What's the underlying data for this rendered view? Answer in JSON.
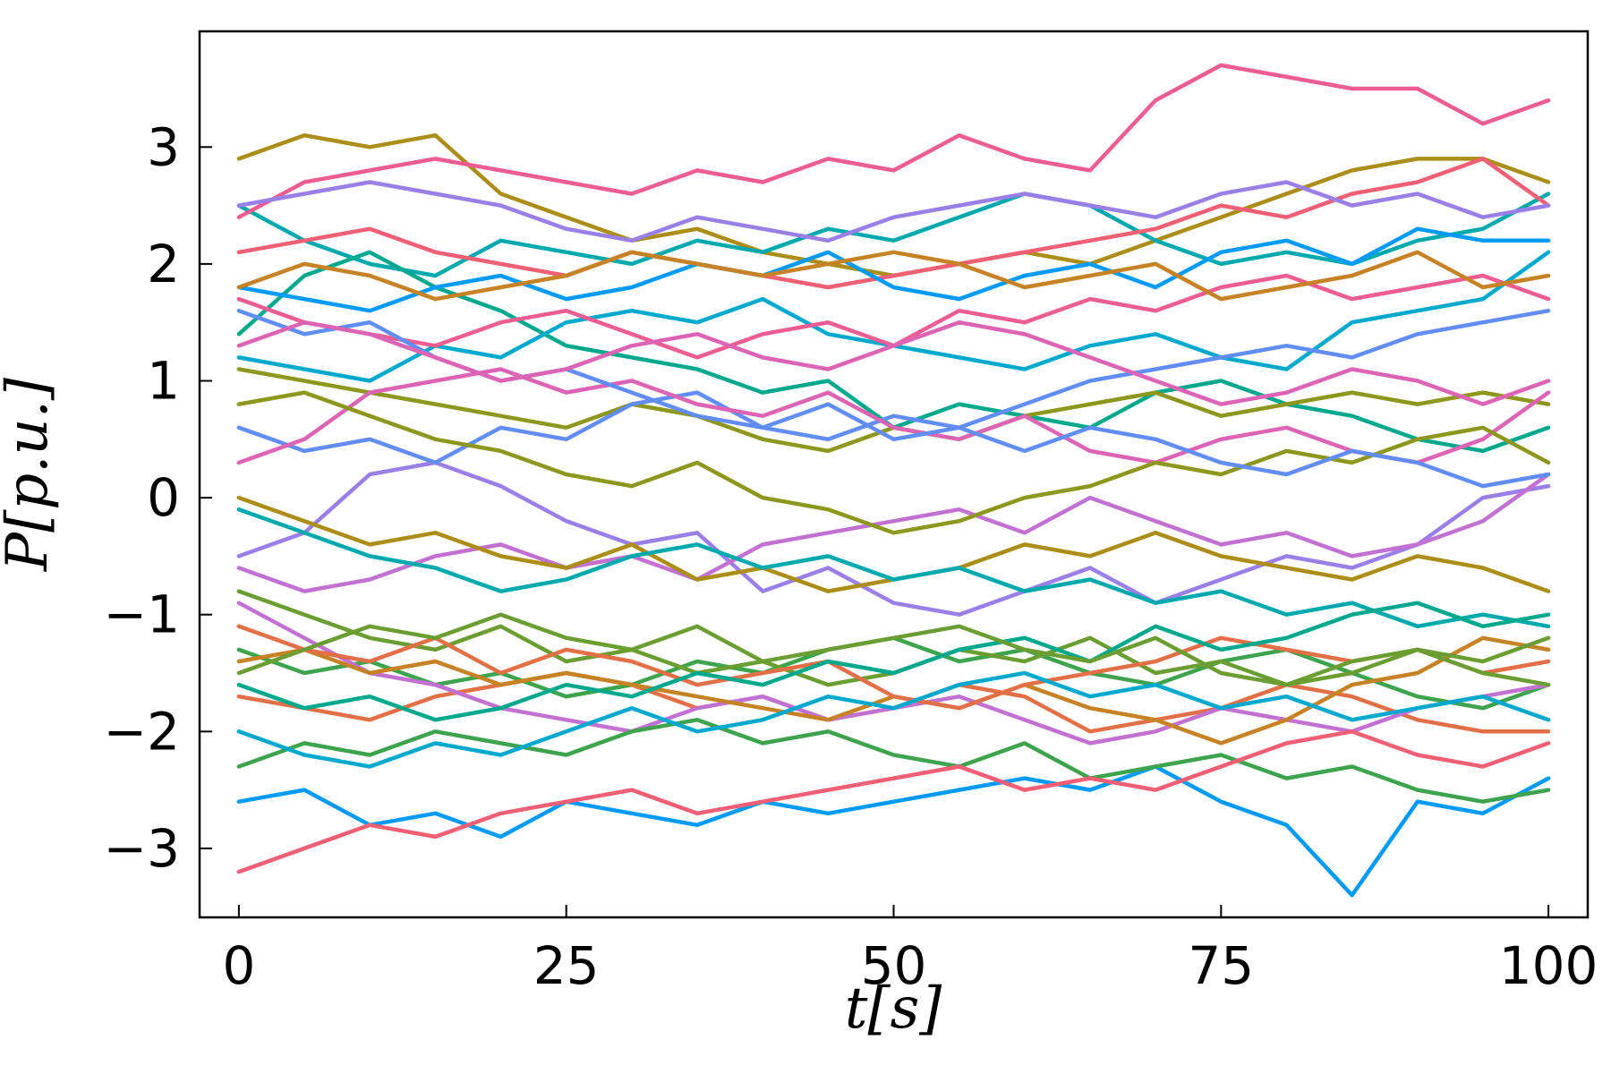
{
  "chart_data": {
    "type": "line",
    "x_label": "t[s]",
    "y_label": "P[p.u.]",
    "x": [
      0,
      5,
      10,
      15,
      20,
      25,
      30,
      35,
      40,
      45,
      50,
      55,
      60,
      65,
      70,
      75,
      80,
      85,
      90,
      95,
      100
    ],
    "xlim": [
      -3,
      103
    ],
    "xticks": [
      0,
      25,
      50,
      75,
      100
    ],
    "ylim": [
      -3.59,
      3.99
    ],
    "yticks": [
      {
        "value": -3,
        "label": "−3"
      },
      {
        "value": -2,
        "label": "−2"
      },
      {
        "value": -1,
        "label": "−1"
      },
      0,
      1,
      2,
      3
    ],
    "grid": false,
    "series": [
      {
        "color": "#009af9",
        "values": [
          -2.6,
          -2.5,
          -2.8,
          -2.7,
          -2.9,
          -2.6,
          -2.7,
          -2.8,
          -2.6,
          -2.7,
          -2.6,
          -2.5,
          -2.4,
          -2.5,
          -2.3,
          -2.6,
          -2.8,
          -3.4,
          -2.6,
          -2.7,
          -2.4
        ]
      },
      {
        "color": "#e26f46",
        "values": [
          -1.7,
          -1.8,
          -1.9,
          -1.7,
          -1.6,
          -1.5,
          -1.6,
          -1.8,
          -1.7,
          -1.9,
          -1.8,
          -1.6,
          -1.7,
          -2.0,
          -1.9,
          -1.8,
          -1.6,
          -1.7,
          -1.9,
          -2.0,
          -2.0
        ]
      },
      {
        "color": "#3da44d",
        "values": [
          -1.3,
          -1.5,
          -1.4,
          -1.6,
          -1.5,
          -1.7,
          -1.6,
          -1.4,
          -1.5,
          -1.3,
          -1.2,
          -1.4,
          -1.3,
          -1.5,
          -1.6,
          -1.4,
          -1.3,
          -1.5,
          -1.7,
          -1.8,
          -1.6
        ]
      },
      {
        "color": "#c271d2",
        "values": [
          -0.9,
          -1.2,
          -1.5,
          -1.6,
          -1.8,
          -1.9,
          -2.0,
          -1.8,
          -1.7,
          -1.9,
          -1.8,
          -1.7,
          -1.9,
          -2.1,
          -2.0,
          -1.8,
          -1.9,
          -2.0,
          -1.8,
          -1.7,
          -1.6
        ]
      },
      {
        "color": "#ac8d18",
        "values": [
          2.9,
          3.1,
          3.0,
          3.1,
          2.6,
          2.4,
          2.2,
          2.3,
          2.1,
          2.0,
          1.9,
          2.0,
          2.1,
          2.0,
          2.2,
          2.4,
          2.6,
          2.8,
          2.9,
          2.9,
          2.7
        ]
      },
      {
        "color": "#00a9ad",
        "values": [
          2.5,
          2.2,
          2.0,
          1.9,
          2.2,
          2.1,
          2.0,
          2.2,
          2.1,
          2.3,
          2.2,
          2.4,
          2.6,
          2.5,
          2.2,
          2.0,
          2.1,
          2.0,
          2.2,
          2.3,
          2.6
        ]
      },
      {
        "color": "#ed5d92",
        "values": [
          2.4,
          2.7,
          2.8,
          2.9,
          2.8,
          2.7,
          2.6,
          2.8,
          2.7,
          2.9,
          2.8,
          3.1,
          2.9,
          2.8,
          3.4,
          3.7,
          3.6,
          3.5,
          3.5,
          3.2,
          3.4
        ]
      },
      {
        "color": "#c68225",
        "values": [
          -1.4,
          -1.3,
          -1.5,
          -1.4,
          -1.6,
          -1.5,
          -1.6,
          -1.7,
          -1.8,
          -1.9,
          -1.7,
          -1.8,
          -1.6,
          -1.8,
          -1.9,
          -2.1,
          -1.9,
          -1.6,
          -1.5,
          -1.2,
          -1.3
        ]
      },
      {
        "color": "#00a98d",
        "values": [
          1.4,
          1.9,
          2.1,
          1.8,
          1.6,
          1.3,
          1.2,
          1.1,
          0.9,
          1.0,
          0.6,
          0.8,
          0.7,
          0.6,
          0.9,
          1.0,
          0.8,
          0.7,
          0.5,
          0.4,
          0.6
        ]
      },
      {
        "color": "#8e971d",
        "values": [
          1.1,
          1.0,
          0.9,
          0.8,
          0.7,
          0.6,
          0.8,
          0.7,
          0.5,
          0.4,
          0.6,
          0.5,
          0.7,
          0.8,
          0.9,
          0.7,
          0.8,
          0.9,
          0.8,
          0.9,
          0.8
        ]
      },
      {
        "color": "#00a9cd",
        "values": [
          1.2,
          1.1,
          1.0,
          1.3,
          1.2,
          1.5,
          1.6,
          1.5,
          1.7,
          1.4,
          1.3,
          1.2,
          1.1,
          1.3,
          1.4,
          1.2,
          1.1,
          1.5,
          1.6,
          1.7,
          2.1
        ]
      },
      {
        "color": "#9b7fe8",
        "values": [
          -0.5,
          -0.3,
          0.2,
          0.3,
          0.1,
          -0.2,
          -0.4,
          -0.3,
          -0.8,
          -0.6,
          -0.9,
          -1.0,
          -0.8,
          -0.6,
          -0.9,
          -0.7,
          -0.5,
          -0.6,
          -0.4,
          0.0,
          0.1
        ]
      },
      {
        "color": "#618df6",
        "values": [
          0.6,
          0.4,
          0.5,
          0.3,
          0.6,
          0.5,
          0.8,
          0.9,
          0.6,
          0.5,
          0.7,
          0.6,
          0.8,
          1.0,
          1.1,
          1.2,
          1.3,
          1.2,
          1.4,
          1.5,
          1.6
        ]
      },
      {
        "color": "#f05f73",
        "values": [
          2.1,
          2.2,
          2.3,
          2.1,
          2.0,
          1.9,
          2.1,
          2.0,
          1.9,
          1.8,
          1.9,
          2.0,
          2.1,
          2.2,
          2.3,
          2.5,
          2.4,
          2.6,
          2.7,
          2.9,
          2.5
        ]
      },
      {
        "color": "#dd64b5",
        "values": [
          0.3,
          0.5,
          0.9,
          1.0,
          1.1,
          0.9,
          1.0,
          0.8,
          0.7,
          0.9,
          0.6,
          0.5,
          0.7,
          0.4,
          0.3,
          0.5,
          0.6,
          0.4,
          0.3,
          0.5,
          0.9
        ]
      },
      {
        "color": "#6b9e32",
        "values": [
          -0.8,
          -1.0,
          -1.2,
          -1.3,
          -1.1,
          -1.4,
          -1.3,
          -1.5,
          -1.4,
          -1.6,
          -1.5,
          -1.3,
          -1.4,
          -1.2,
          -1.5,
          -1.4,
          -1.6,
          -1.5,
          -1.3,
          -1.4,
          -1.2
        ]
      },
      {
        "color": "#009af9",
        "values": [
          1.8,
          1.7,
          1.6,
          1.8,
          1.9,
          1.7,
          1.8,
          2.0,
          1.9,
          2.1,
          1.8,
          1.7,
          1.9,
          2.0,
          1.8,
          2.1,
          2.2,
          2.0,
          2.3,
          2.2,
          2.2
        ]
      },
      {
        "color": "#e26f46",
        "values": [
          -1.1,
          -1.3,
          -1.4,
          -1.2,
          -1.5,
          -1.3,
          -1.4,
          -1.6,
          -1.5,
          -1.4,
          -1.7,
          -1.8,
          -1.6,
          -1.5,
          -1.4,
          -1.2,
          -1.3,
          -1.4,
          -1.3,
          -1.5,
          -1.4
        ]
      },
      {
        "color": "#3da44d",
        "values": [
          -2.3,
          -2.1,
          -2.2,
          -2.0,
          -2.1,
          -2.2,
          -2.0,
          -1.9,
          -2.1,
          -2.0,
          -2.2,
          -2.3,
          -2.1,
          -2.4,
          -2.3,
          -2.2,
          -2.4,
          -2.3,
          -2.5,
          -2.6,
          -2.5
        ]
      },
      {
        "color": "#c271d2",
        "values": [
          -0.6,
          -0.8,
          -0.7,
          -0.5,
          -0.4,
          -0.6,
          -0.5,
          -0.7,
          -0.4,
          -0.3,
          -0.2,
          -0.1,
          -0.3,
          0.0,
          -0.2,
          -0.4,
          -0.3,
          -0.5,
          -0.4,
          -0.2,
          0.2
        ]
      },
      {
        "color": "#ac8d18",
        "values": [
          0.0,
          -0.2,
          -0.4,
          -0.3,
          -0.5,
          -0.6,
          -0.4,
          -0.7,
          -0.6,
          -0.8,
          -0.7,
          -0.6,
          -0.4,
          -0.5,
          -0.3,
          -0.5,
          -0.6,
          -0.7,
          -0.5,
          -0.6,
          -0.8
        ]
      },
      {
        "color": "#00a9ad",
        "values": [
          -0.1,
          -0.3,
          -0.5,
          -0.6,
          -0.8,
          -0.7,
          -0.5,
          -0.4,
          -0.6,
          -0.5,
          -0.7,
          -0.6,
          -0.8,
          -0.7,
          -0.9,
          -0.8,
          -1.0,
          -0.9,
          -1.1,
          -1.0,
          -1.1
        ]
      },
      {
        "color": "#ed5d92",
        "values": [
          1.7,
          1.5,
          1.4,
          1.3,
          1.5,
          1.6,
          1.4,
          1.2,
          1.4,
          1.5,
          1.3,
          1.6,
          1.5,
          1.7,
          1.6,
          1.8,
          1.9,
          1.7,
          1.8,
          1.9,
          1.7
        ]
      },
      {
        "color": "#c68225",
        "values": [
          1.8,
          2.0,
          1.9,
          1.7,
          1.8,
          1.9,
          2.1,
          2.0,
          1.9,
          2.0,
          2.1,
          2.0,
          1.8,
          1.9,
          2.0,
          1.7,
          1.8,
          1.9,
          2.1,
          1.8,
          1.9
        ]
      },
      {
        "color": "#00a98d",
        "values": [
          -1.6,
          -1.8,
          -1.7,
          -1.9,
          -1.8,
          -1.6,
          -1.7,
          -1.5,
          -1.6,
          -1.4,
          -1.5,
          -1.3,
          -1.2,
          -1.4,
          -1.1,
          -1.3,
          -1.2,
          -1.0,
          -0.9,
          -1.1,
          -1.0
        ]
      },
      {
        "color": "#8e971d",
        "values": [
          0.8,
          0.9,
          0.7,
          0.5,
          0.4,
          0.2,
          0.1,
          0.3,
          0.0,
          -0.1,
          -0.3,
          -0.2,
          0.0,
          0.1,
          0.3,
          0.2,
          0.4,
          0.3,
          0.5,
          0.6,
          0.3
        ]
      },
      {
        "color": "#00a9cd",
        "values": [
          -2.0,
          -2.2,
          -2.3,
          -2.1,
          -2.2,
          -2.0,
          -1.8,
          -2.0,
          -1.9,
          -1.7,
          -1.8,
          -1.6,
          -1.5,
          -1.7,
          -1.6,
          -1.8,
          -1.7,
          -1.9,
          -1.8,
          -1.7,
          -1.9
        ]
      },
      {
        "color": "#9b7fe8",
        "values": [
          2.5,
          2.6,
          2.7,
          2.6,
          2.5,
          2.3,
          2.2,
          2.4,
          2.3,
          2.2,
          2.4,
          2.5,
          2.6,
          2.5,
          2.4,
          2.6,
          2.7,
          2.5,
          2.6,
          2.4,
          2.5
        ]
      },
      {
        "color": "#618df6",
        "values": [
          1.6,
          1.4,
          1.5,
          1.2,
          1.0,
          1.1,
          0.9,
          0.7,
          0.6,
          0.8,
          0.5,
          0.6,
          0.4,
          0.6,
          0.5,
          0.3,
          0.2,
          0.4,
          0.3,
          0.1,
          0.2
        ]
      },
      {
        "color": "#f05f73",
        "values": [
          -3.2,
          -3.0,
          -2.8,
          -2.9,
          -2.7,
          -2.6,
          -2.5,
          -2.7,
          -2.6,
          -2.5,
          -2.4,
          -2.3,
          -2.5,
          -2.4,
          -2.5,
          -2.3,
          -2.1,
          -2.0,
          -2.2,
          -2.3,
          -2.1
        ]
      },
      {
        "color": "#dd64b5",
        "values": [
          1.3,
          1.5,
          1.4,
          1.2,
          1.0,
          1.1,
          1.3,
          1.4,
          1.2,
          1.1,
          1.3,
          1.5,
          1.4,
          1.2,
          1.0,
          0.8,
          0.9,
          1.1,
          1.0,
          0.8,
          1.0
        ]
      },
      {
        "color": "#6b9e32",
        "values": [
          -1.5,
          -1.3,
          -1.1,
          -1.2,
          -1.0,
          -1.2,
          -1.3,
          -1.1,
          -1.4,
          -1.3,
          -1.2,
          -1.1,
          -1.3,
          -1.4,
          -1.2,
          -1.5,
          -1.6,
          -1.4,
          -1.3,
          -1.5,
          -1.6
        ]
      }
    ]
  }
}
